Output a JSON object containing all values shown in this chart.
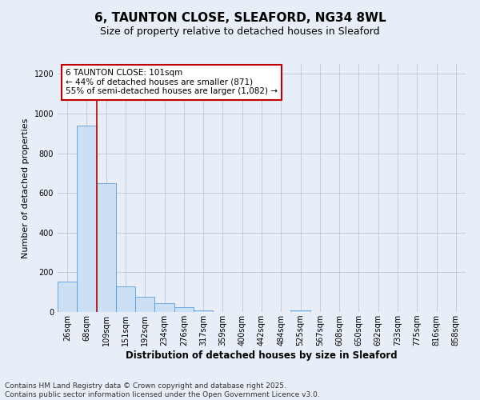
{
  "title": "6, TAUNTON CLOSE, SLEAFORD, NG34 8WL",
  "subtitle": "Size of property relative to detached houses in Sleaford",
  "xlabel": "Distribution of detached houses by size in Sleaford",
  "ylabel": "Number of detached properties",
  "categories": [
    "26sqm",
    "68sqm",
    "109sqm",
    "151sqm",
    "192sqm",
    "234sqm",
    "276sqm",
    "317sqm",
    "359sqm",
    "400sqm",
    "442sqm",
    "484sqm",
    "525sqm",
    "567sqm",
    "608sqm",
    "650sqm",
    "692sqm",
    "733sqm",
    "775sqm",
    "816sqm",
    "858sqm"
  ],
  "values": [
    155,
    940,
    650,
    130,
    75,
    45,
    25,
    8,
    0,
    0,
    0,
    0,
    10,
    0,
    0,
    0,
    0,
    0,
    0,
    0,
    0
  ],
  "bar_color": "#cce0f5",
  "bar_edge_color": "#5b9bd5",
  "vline_color": "#c00000",
  "annotation_text": "6 TAUNTON CLOSE: 101sqm\n← 44% of detached houses are smaller (871)\n55% of semi-detached houses are larger (1,082) →",
  "annotation_box_color": "#ffffff",
  "annotation_box_edge": "#c00000",
  "ylim": [
    0,
    1250
  ],
  "yticks": [
    0,
    200,
    400,
    600,
    800,
    1000,
    1200
  ],
  "background_color": "#e8eef8",
  "plot_bg_color": "#e8eef8",
  "footer_text": "Contains HM Land Registry data © Crown copyright and database right 2025.\nContains public sector information licensed under the Open Government Licence v3.0.",
  "title_fontsize": 11,
  "subtitle_fontsize": 9,
  "xlabel_fontsize": 8.5,
  "ylabel_fontsize": 8,
  "tick_fontsize": 7,
  "annotation_fontsize": 7.5,
  "footer_fontsize": 6.5
}
